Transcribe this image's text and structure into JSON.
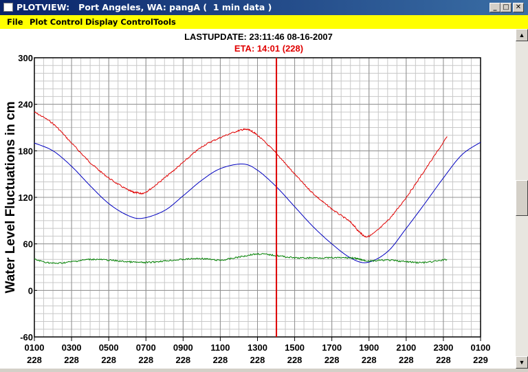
{
  "window": {
    "title": "PLOTVIEW:   Port Angeles, WA: pangA (  1 min data )",
    "minimize_glyph": "_",
    "maximize_glyph": "□",
    "close_glyph": "✕"
  },
  "menu": [
    {
      "label": "File"
    },
    {
      "label": "Plot Control"
    },
    {
      "label": "Display Control"
    },
    {
      "label": "Tools"
    }
  ],
  "header": {
    "lastupdate": "LASTUPDATE: 23:11:46  08-16-2007",
    "eta": "ETA: 14:01 (228)"
  },
  "scrollbar": {
    "up_glyph": "▲",
    "down_glyph": "▼"
  },
  "colors": {
    "menubar": "#ffff00",
    "observed": "#e00000",
    "predicted": "#0000c0",
    "residual": "#008000",
    "eta_line": "#e00000",
    "grid": "#a0a0a0"
  },
  "chart_data": {
    "type": "line",
    "ylabel": "Water Level Fluctuations in cm",
    "xlabel": "",
    "ylim": [
      -60,
      300
    ],
    "xlim": [
      1,
      25
    ],
    "y_ticks": [
      300,
      240,
      180,
      120,
      60,
      0,
      -60
    ],
    "x_ticks": [
      {
        "x": 1,
        "label": "0100",
        "day": "228"
      },
      {
        "x": 3,
        "label": "0300",
        "day": "228"
      },
      {
        "x": 5,
        "label": "0500",
        "day": "228"
      },
      {
        "x": 7,
        "label": "0700",
        "day": "228"
      },
      {
        "x": 9,
        "label": "0900",
        "day": "228"
      },
      {
        "x": 11,
        "label": "1100",
        "day": "228"
      },
      {
        "x": 13,
        "label": "1300",
        "day": "228"
      },
      {
        "x": 15,
        "label": "1500",
        "day": "228"
      },
      {
        "x": 17,
        "label": "1700",
        "day": "228"
      },
      {
        "x": 19,
        "label": "1900",
        "day": "228"
      },
      {
        "x": 21,
        "label": "2100",
        "day": "228"
      },
      {
        "x": 23,
        "label": "2300",
        "day": "228"
      },
      {
        "x": 25,
        "label": "0100",
        "day": "229"
      }
    ],
    "grid": true,
    "eta_x": 14.02,
    "series": [
      {
        "key": "observed",
        "x": [
          1,
          2,
          3,
          4,
          5,
          6,
          6.5,
          7,
          8,
          9,
          10,
          11,
          12,
          12.5,
          13,
          14,
          15,
          16,
          17,
          18,
          18.5,
          19,
          20,
          21,
          22,
          23.2
        ],
        "y": [
          230,
          215,
          190,
          165,
          145,
          130,
          126,
          127,
          145,
          165,
          185,
          197,
          206,
          207,
          200,
          177,
          150,
          125,
          105,
          88,
          75,
          70,
          90,
          120,
          155,
          198
        ]
      },
      {
        "key": "predicted",
        "x": [
          1,
          2,
          3,
          4,
          5,
          6,
          6.8,
          8,
          9,
          10,
          11,
          12.2,
          13,
          14,
          15,
          16,
          17,
          18,
          18.9,
          20,
          21,
          22,
          23,
          24,
          25
        ],
        "y": [
          190,
          180,
          160,
          135,
          112,
          97,
          93,
          103,
          122,
          142,
          157,
          163,
          155,
          134,
          108,
          82,
          60,
          42,
          36,
          50,
          80,
          112,
          145,
          175,
          191
        ]
      },
      {
        "key": "residual",
        "x": [
          1,
          2,
          3,
          4,
          5,
          6,
          7,
          8,
          9,
          10,
          11,
          12,
          13,
          14,
          15,
          16,
          17,
          18,
          18.5,
          19,
          20,
          21,
          22,
          23.2
        ],
        "y": [
          40,
          35,
          37,
          40,
          39,
          37,
          36,
          38,
          40,
          41,
          39,
          43,
          47,
          45,
          42,
          42,
          42,
          42,
          40,
          38,
          39,
          37,
          36,
          40
        ]
      }
    ]
  }
}
